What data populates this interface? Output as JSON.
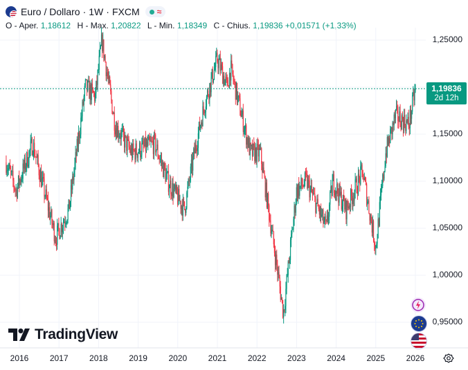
{
  "header": {
    "symbol": "Euro / Dollaro",
    "sep1": "·",
    "interval": "1W",
    "sep2": "·",
    "exchange": "FXCM",
    "status_icon": "market-open-dot",
    "approx_symbol": "≈"
  },
  "ohlc": {
    "open_label": "O - Aper.",
    "open_value": "1,18612",
    "high_label": "H - Max.",
    "high_value": "1,20822",
    "low_label": "L - Min.",
    "low_value": "1,18349",
    "close_label": "C - Chius.",
    "close_value": "1,19836",
    "change": "+0,01571",
    "change_pct": "(+1,33%)"
  },
  "price_tag": {
    "price": "1,19836",
    "countdown": "2d 12h",
    "color": "#089981"
  },
  "y_axis": [
    "1,25000",
    "1,20000",
    "1,15000",
    "1,10000",
    "1,05000",
    "1,00000",
    "0,95000"
  ],
  "x_axis": [
    "2016",
    "2017",
    "2018",
    "2019",
    "2020",
    "2021",
    "2022",
    "2023",
    "2024",
    "2025",
    "2026"
  ],
  "logo_text": "TradingView",
  "colors": {
    "up": "#089981",
    "down": "#f23645",
    "last_price_line": "#089981"
  },
  "side_icons": [
    "lightning-icon",
    "eu-flag-icon",
    "us-flag-icon"
  ],
  "chart_data": {
    "type": "candlestick",
    "title": "Euro / Dollaro · 1W · FXCM",
    "xlabel": "",
    "ylabel": "",
    "ylim": [
      0.93,
      1.27
    ],
    "x_range": [
      "2015-09",
      "2026-02"
    ],
    "last_price": 1.19836,
    "anchors": [
      [
        "2015-09",
        1.12
      ],
      [
        "2015-12",
        1.09
      ],
      [
        "2016-05",
        1.14
      ],
      [
        "2016-12",
        1.04
      ],
      [
        "2017-04",
        1.07
      ],
      [
        "2017-09",
        1.2
      ],
      [
        "2017-12",
        1.19
      ],
      [
        "2018-02",
        1.25
      ],
      [
        "2018-06",
        1.16
      ],
      [
        "2018-11",
        1.13
      ],
      [
        "2019-06",
        1.14
      ],
      [
        "2019-10",
        1.1
      ],
      [
        "2020-03",
        1.07
      ],
      [
        "2020-06",
        1.13
      ],
      [
        "2020-09",
        1.18
      ],
      [
        "2021-01",
        1.23
      ],
      [
        "2021-04",
        1.2
      ],
      [
        "2021-05",
        1.22
      ],
      [
        "2021-11",
        1.13
      ],
      [
        "2022-02",
        1.13
      ],
      [
        "2022-07",
        1.01
      ],
      [
        "2022-09",
        0.96
      ],
      [
        "2023-01",
        1.09
      ],
      [
        "2023-04",
        1.1
      ],
      [
        "2023-10",
        1.05
      ],
      [
        "2023-12",
        1.1
      ],
      [
        "2024-04",
        1.07
      ],
      [
        "2024-09",
        1.11
      ],
      [
        "2025-01",
        1.03
      ],
      [
        "2025-04",
        1.13
      ],
      [
        "2025-07",
        1.17
      ],
      [
        "2025-11",
        1.16
      ],
      [
        "2026-01",
        1.19836
      ]
    ]
  }
}
